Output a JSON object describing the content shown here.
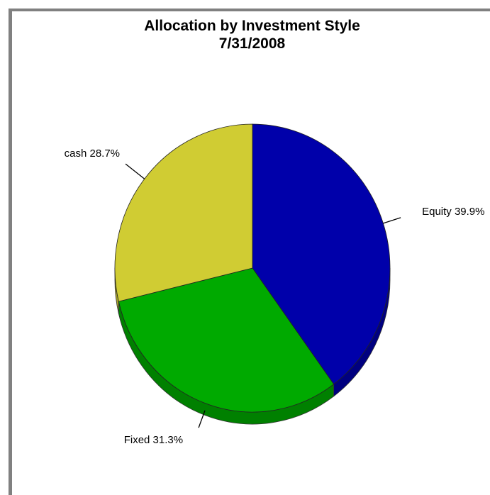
{
  "chart_data": {
    "type": "pie",
    "title": "Allocation by Investment Style",
    "subtitle": "7/31/2008",
    "slices": [
      {
        "label": "Equity",
        "value": 39.9,
        "display": "Equity 39.9%",
        "color": "#0000AA",
        "side_color": "#000080"
      },
      {
        "label": "Fixed",
        "value": 31.3,
        "display": "Fixed 31.3%",
        "color": "#00AA00",
        "side_color": "#008000"
      },
      {
        "label": "cash",
        "value": 28.7,
        "display": "cash 28.7%",
        "color": "#D0CC33",
        "side_color": "#A8A428"
      }
    ],
    "start_angle": "12 o'clock",
    "direction": "clockwise",
    "legend": "none"
  }
}
